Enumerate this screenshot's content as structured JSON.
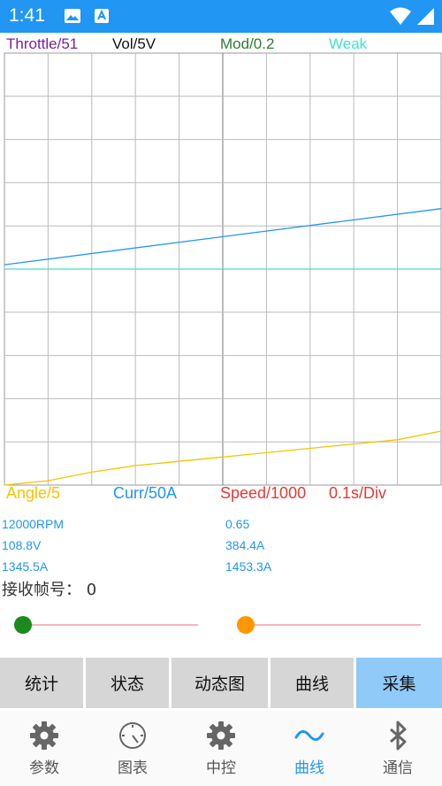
{
  "status_bar": {
    "time": "1:41"
  },
  "top_legend": [
    {
      "text": "Throttle/51",
      "color": "#7b1fa2"
    },
    {
      "text": "Vol/5V",
      "color": "#111111"
    },
    {
      "text": "Mod/0.2",
      "color": "#2e7d32"
    },
    {
      "text": "Weak",
      "color": "#40e0d0"
    }
  ],
  "bottom_legend": [
    {
      "text": "Angle/5",
      "color": "#f5c400"
    },
    {
      "text": "Curr/50A",
      "color": "#2196f3"
    },
    {
      "text": "Speed/1000",
      "color": "#e53935"
    },
    {
      "text": "0.1s/Div",
      "color": "#e53935"
    }
  ],
  "chart_data": {
    "type": "line",
    "grid": true,
    "divisions": {
      "x": 10,
      "y": 10
    },
    "xlabel": "",
    "ylabel": "",
    "series": [
      {
        "name": "Curr/50A",
        "color": "#2196f3",
        "x": [
          0,
          10
        ],
        "y": [
          5.1,
          6.4
        ]
      },
      {
        "name": "Weak",
        "color": "#40e0d0",
        "x": [
          0,
          10
        ],
        "y": [
          5.0,
          5.0
        ]
      },
      {
        "name": "Angle/5",
        "color": "#f5c400",
        "x": [
          0,
          1,
          2,
          3,
          4,
          5,
          6,
          7,
          8,
          9,
          10
        ],
        "y": [
          0.0,
          0.1,
          0.3,
          0.45,
          0.55,
          0.65,
          0.75,
          0.85,
          0.95,
          1.05,
          1.25
        ]
      }
    ]
  },
  "readings": {
    "left": [
      "12000RPM",
      "108.8V",
      "1345.5A"
    ],
    "right": [
      "0.65",
      "384.4A",
      "1453.3A"
    ],
    "frame_label": "接收帧号： 0"
  },
  "sliders": [
    {
      "value": 0.0,
      "color": "#1b8a1b"
    },
    {
      "value": 0.0,
      "color": "#ff9800"
    }
  ],
  "buttons": [
    {
      "label": "统计",
      "active": false
    },
    {
      "label": "状态",
      "active": false
    },
    {
      "label": "动态图",
      "active": false
    },
    {
      "label": "曲线",
      "active": false
    },
    {
      "label": "采集",
      "active": true
    }
  ],
  "nav": [
    {
      "label": "参数",
      "icon": "gear-icon",
      "active": false
    },
    {
      "label": "图表",
      "icon": "gauge-icon",
      "active": false
    },
    {
      "label": "中控",
      "icon": "gear-icon",
      "active": false
    },
    {
      "label": "曲线",
      "icon": "wave-icon",
      "active": true
    },
    {
      "label": "通信",
      "icon": "bluetooth-icon",
      "active": false
    }
  ]
}
